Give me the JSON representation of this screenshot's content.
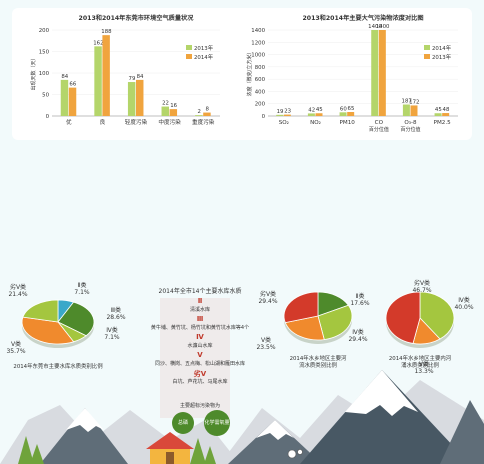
{
  "colors": {
    "sky": "#f2fafb",
    "panel_bg": "#ffffff",
    "bar_2013": "#b4d56a",
    "bar_2014": "#f0a43e",
    "dark_blue": "#334a5e",
    "mountain_light": "#d8dbe0",
    "mountain_dark": "#485864",
    "red_bg": "#c8412f",
    "pie_orange": "#f08a2d",
    "pie_green": "#a4c63f",
    "pie_dark_green": "#4e8a2b",
    "pie_blue": "#3aa8c9",
    "pie_red": "#d33a2a"
  },
  "chart_data": [
    {
      "type": "bar",
      "title": "2013和2014年东莞市环境空气质量状况",
      "ylabel": "出现天数（天）",
      "ylim": [
        0,
        200
      ],
      "yticks": [
        0,
        50,
        100,
        150,
        200
      ],
      "categories": [
        "优",
        "良",
        "轻度污染",
        "中度污染",
        "重度污染"
      ],
      "legend_position": "right",
      "series": [
        {
          "name": "2013年",
          "color": "#b4d56a",
          "values": [
            84,
            162,
            79,
            22,
            2
          ]
        },
        {
          "name": "2014年",
          "color": "#f0a43e",
          "values": [
            66,
            188,
            84,
            16,
            8
          ]
        }
      ]
    },
    {
      "type": "bar",
      "title": "2013和2014年主要大气污染物浓度对比图",
      "ylabel": "浓度（微克/立方米）",
      "ylim": [
        0,
        1400
      ],
      "yticks": [
        0,
        200,
        400,
        600,
        800,
        1000,
        1200,
        1400
      ],
      "categories": [
        "SO₂",
        "NO₂",
        "PM10",
        "CO",
        "O₃-8",
        "PM2.5"
      ],
      "category_sublabels": [
        "",
        "",
        "",
        "百分位值",
        "百分位值",
        ""
      ],
      "legend_position": "right",
      "series": [
        {
          "name": "2014年",
          "color": "#b4d56a",
          "values": [
            19,
            42,
            60,
            1400,
            187,
            45
          ]
        },
        {
          "name": "2013年",
          "color": "#f0a43e",
          "values": [
            23,
            45,
            65,
            1400,
            172,
            48
          ]
        }
      ]
    },
    {
      "type": "pie",
      "title": "2014年东莞市主要水库水质类别比例",
      "labels": [
        "Ⅱ类",
        "Ⅲ类",
        "Ⅳ类",
        "Ⅴ类",
        "劣Ⅴ类"
      ],
      "values": [
        7.1,
        28.6,
        7.1,
        35.7,
        21.4
      ],
      "value_labels": [
        "7.1%",
        "28.6%",
        "7.1%",
        "35.7%",
        "21.4%"
      ],
      "colors": [
        "#3aa8c9",
        "#4e8a2b",
        "#a4c63f",
        "#f08a2d",
        "#a4c63f"
      ]
    },
    {
      "type": "pie",
      "title": "2014年水乡地区主要河流水质类别比例",
      "labels": [
        "Ⅱ类",
        "Ⅳ类",
        "Ⅴ类",
        "劣Ⅴ类"
      ],
      "values": [
        17.6,
        29.4,
        23.5,
        29.4
      ],
      "value_labels": [
        "17.6%",
        "29.4%",
        "23.5%",
        "29.4%"
      ],
      "colors": [
        "#4e8a2b",
        "#a4c63f",
        "#f08a2d",
        "#d33a2a"
      ]
    },
    {
      "type": "pie",
      "title": "2014年水乡地区主要内河涌水质类别比例",
      "labels": [
        "Ⅳ类",
        "Ⅴ类",
        "劣Ⅴ类"
      ],
      "values": [
        40.0,
        13.3,
        46.7
      ],
      "value_labels": [
        "40.0%",
        "13.3%",
        "46.7%"
      ],
      "colors": [
        "#a4c63f",
        "#f08a2d",
        "#d33a2a"
      ]
    }
  ],
  "reservoir_info": {
    "title": "2014年全市14个主要水库水质",
    "class2": "Ⅱ",
    "class2_desc": "清溪水库",
    "class3": "Ⅲ",
    "class3_desc": "黄牛埔、黄竹坑、杨竹坑和黄竹坑水库等4个",
    "class4": "Ⅳ",
    "class4_desc": "水濂山水库",
    "class5": "Ⅴ",
    "class5_desc": "同沙、横岗、五点梅、松山湖和雁田水库",
    "class_bad": "劣Ⅴ",
    "class_bad_desc": "白坑、芦花坑、马尾水库",
    "pollution_title": "主要超标污染物为",
    "pollutant_1": "总磷",
    "pollutant_2": "化学需氧量"
  }
}
